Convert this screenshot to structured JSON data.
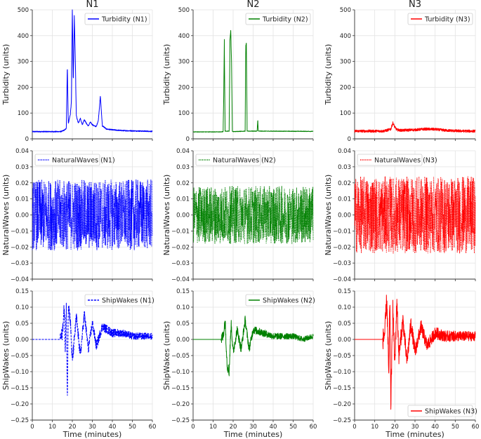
{
  "column_titles": [
    "N1",
    "N2",
    "N3"
  ],
  "chart_data": [
    {
      "type": "line",
      "panel": "N1-turbidity",
      "title": "N1",
      "xlabel": "",
      "ylabel": "Turbidity (units)",
      "ylim": [
        0,
        500
      ],
      "yticks": [
        0,
        100,
        200,
        300,
        400,
        500
      ],
      "yticklabels": [
        "0",
        "100",
        "200",
        "300",
        "400",
        "500"
      ],
      "xlim": [
        0,
        60
      ],
      "xticks": [
        0,
        10,
        20,
        30,
        40,
        50,
        60
      ],
      "grid": true,
      "legend": "top-right",
      "series": [
        {
          "name": "Turbidity (N1)",
          "color": "#0000ff",
          "style": "solid",
          "baseline": 28,
          "noise": 2,
          "x": [
            0,
            14,
            15,
            16,
            17,
            17.5,
            18,
            19,
            19.5,
            20,
            20.5,
            21,
            21.5,
            22,
            23,
            24,
            25,
            26,
            27,
            28,
            29,
            30,
            31,
            32,
            33,
            34,
            35,
            36,
            37,
            40,
            45,
            50,
            55,
            60
          ],
          "y": [
            28,
            28,
            30,
            34,
            40,
            285,
            60,
            95,
            140,
            500,
            220,
            480,
            300,
            90,
            60,
            80,
            55,
            75,
            60,
            50,
            65,
            55,
            50,
            48,
            72,
            165,
            50,
            45,
            38,
            35,
            32,
            31,
            30,
            29
          ]
        }
      ]
    },
    {
      "type": "line",
      "panel": "N2-turbidity",
      "title": "N2",
      "xlabel": "",
      "ylabel": "Turbidity (units)",
      "ylim": [
        0,
        500
      ],
      "yticks": [
        0,
        100,
        200,
        300,
        400,
        500
      ],
      "yticklabels": [
        "0",
        "100",
        "200",
        "300",
        "400",
        "500"
      ],
      "xlim": [
        0,
        60
      ],
      "xticks": [
        0,
        10,
        20,
        30,
        40,
        50,
        60
      ],
      "grid": true,
      "legend": "top-right",
      "series": [
        {
          "name": "Turbidity (N2)",
          "color": "#008000",
          "style": "solid",
          "baseline": 27,
          "noise": 1,
          "x": [
            0,
            14,
            15,
            15.3,
            15.6,
            16,
            18,
            18.4,
            18.8,
            19.2,
            19.6,
            20,
            26,
            26.3,
            26.6,
            27,
            32,
            32.3,
            32.6,
            60
          ],
          "y": [
            27,
            27,
            28,
            160,
            385,
            30,
            30,
            380,
            420,
            300,
            30,
            28,
            30,
            360,
            370,
            30,
            30,
            75,
            30,
            29
          ]
        }
      ]
    },
    {
      "type": "line",
      "panel": "N3-turbidity",
      "title": "N3",
      "xlabel": "",
      "ylabel": "Turbidity (units)",
      "ylim": [
        0,
        500
      ],
      "yticks": [
        0,
        100,
        200,
        300,
        400,
        500
      ],
      "yticklabels": [
        "0",
        "100",
        "200",
        "300",
        "400",
        "500"
      ],
      "xlim": [
        0,
        60
      ],
      "xticks": [
        0,
        10,
        20,
        30,
        40,
        50,
        60
      ],
      "grid": true,
      "legend": "top-right",
      "series": [
        {
          "name": "Turbidity (N3)",
          "color": "#ff0000",
          "style": "solid",
          "baseline": 30,
          "noise": 5,
          "x": [
            0,
            14,
            16,
            18,
            19,
            20,
            21,
            23,
            30,
            35,
            40,
            45,
            50,
            55,
            60
          ],
          "y": [
            30,
            30,
            33,
            38,
            62,
            45,
            35,
            33,
            35,
            38,
            37,
            33,
            31,
            30,
            30
          ]
        }
      ]
    },
    {
      "type": "line",
      "panel": "N1-naturalwaves",
      "xlabel": "",
      "ylabel": "NaturalWaves (units)",
      "ylim": [
        -0.04,
        0.04
      ],
      "yticks": [
        -0.04,
        -0.03,
        -0.02,
        -0.01,
        0,
        0.01,
        0.02,
        0.03,
        0.04
      ],
      "yticklabels": [
        "−0.04",
        "−0.03",
        "−0.02",
        "−0.01",
        "0.00",
        "0.01",
        "0.02",
        "0.03",
        "0.04"
      ],
      "xlim": [
        0,
        60
      ],
      "xticks": [
        0,
        10,
        20,
        30,
        40,
        50,
        60
      ],
      "grid": true,
      "legend": "top-left",
      "series": [
        {
          "name": "NaturalWaves (N1)",
          "color": "#0000ff",
          "style": "dotted",
          "x": [
            0,
            60
          ],
          "y": [
            0,
            0
          ],
          "noise": 0.022
        }
      ]
    },
    {
      "type": "line",
      "panel": "N2-naturalwaves",
      "xlabel": "",
      "ylabel": "NaturalWaves (units)",
      "ylim": [
        -0.04,
        0.04
      ],
      "yticks": [
        -0.04,
        -0.03,
        -0.02,
        -0.01,
        0,
        0.01,
        0.02,
        0.03,
        0.04
      ],
      "yticklabels": [
        "−0.04",
        "−0.03",
        "−0.02",
        "−0.01",
        "0.00",
        "0.01",
        "0.02",
        "0.03",
        "0.04"
      ],
      "xlim": [
        0,
        60
      ],
      "xticks": [
        0,
        10,
        20,
        30,
        40,
        50,
        60
      ],
      "grid": true,
      "legend": "top-left",
      "series": [
        {
          "name": "NaturalWaves (N2)",
          "color": "#008000",
          "style": "dotted",
          "x": [
            0,
            60
          ],
          "y": [
            0,
            0
          ],
          "noise": 0.018
        }
      ]
    },
    {
      "type": "line",
      "panel": "N3-naturalwaves",
      "xlabel": "",
      "ylabel": "NaturalWaves (units)",
      "ylim": [
        -0.04,
        0.04
      ],
      "yticks": [
        -0.04,
        -0.03,
        -0.02,
        -0.01,
        0,
        0.01,
        0.02,
        0.03,
        0.04
      ],
      "yticklabels": [
        "−0.04",
        "−0.03",
        "−0.02",
        "−0.01",
        "0.00",
        "0.01",
        "0.02",
        "0.03",
        "0.04"
      ],
      "xlim": [
        0,
        60
      ],
      "xticks": [
        0,
        10,
        20,
        30,
        40,
        50,
        60
      ],
      "grid": true,
      "legend": "top-left",
      "series": [
        {
          "name": "NaturalWaves (N3)",
          "color": "#ff0000",
          "style": "dotted",
          "x": [
            0,
            60
          ],
          "y": [
            0,
            0
          ],
          "noise": 0.024
        }
      ]
    },
    {
      "type": "line",
      "panel": "N1-shipwakes",
      "xlabel": "Time (minutes)",
      "ylabel": "ShipWakes (units)",
      "ylim": [
        -0.25,
        0.15
      ],
      "yticks": [
        -0.25,
        -0.2,
        -0.15,
        -0.1,
        -0.05,
        0,
        0.05,
        0.1,
        0.15
      ],
      "yticklabels": [
        "−0.25",
        "−0.20",
        "−0.15",
        "−0.10",
        "−0.05",
        "0.00",
        "0.05",
        "0.10",
        "0.15"
      ],
      "xlim": [
        0,
        60
      ],
      "xticks": [
        0,
        10,
        20,
        30,
        40,
        50,
        60
      ],
      "xticklabels": [
        "0",
        "10",
        "20",
        "30",
        "40",
        "50",
        "60"
      ],
      "grid": true,
      "legend": "top-right",
      "series": [
        {
          "name": "ShipWakes (N1)",
          "color": "#0000ff",
          "style": "dashed",
          "x": [
            0,
            14,
            15,
            16,
            16.5,
            17,
            17.5,
            18,
            19,
            20,
            22,
            24,
            26,
            28,
            30,
            32,
            35,
            40,
            45,
            50,
            55,
            60
          ],
          "y": [
            0,
            0,
            0.02,
            0.1,
            -0.05,
            0.12,
            -0.2,
            0.11,
            0.06,
            -0.07,
            0.07,
            -0.05,
            0.08,
            -0.03,
            0.05,
            -0.02,
            0.04,
            0.02,
            0.02,
            0.01,
            0.01,
            0.01
          ],
          "noise": 0.015,
          "noise_start": 14
        }
      ]
    },
    {
      "type": "line",
      "panel": "N2-shipwakes",
      "xlabel": "Time (minutes)",
      "ylabel": "ShipWakes (units)",
      "ylim": [
        -0.25,
        0.15
      ],
      "yticks": [
        -0.25,
        -0.2,
        -0.15,
        -0.1,
        -0.05,
        0,
        0.05,
        0.1,
        0.15
      ],
      "yticklabels": [
        "−0.25",
        "−0.20",
        "−0.15",
        "−0.10",
        "−0.05",
        "0.00",
        "0.05",
        "0.10",
        "0.15"
      ],
      "xlim": [
        0,
        60
      ],
      "xticks": [
        0,
        10,
        20,
        30,
        40,
        50,
        60
      ],
      "xticklabels": [
        "0",
        "10",
        "20",
        "30",
        "40",
        "50",
        "60"
      ],
      "grid": true,
      "legend": "top-right",
      "series": [
        {
          "name": "ShipWakes (N2)",
          "color": "#008000",
          "style": "solid",
          "x": [
            0,
            14,
            15,
            16,
            17,
            18,
            19,
            20,
            22,
            24,
            26,
            28,
            30,
            35,
            40,
            45,
            50,
            55,
            60
          ],
          "y": [
            0,
            0,
            0.01,
            0.06,
            -0.08,
            -0.1,
            0.05,
            -0.04,
            0.03,
            -0.03,
            0.06,
            -0.03,
            0.03,
            0.02,
            0.01,
            0.01,
            0.01,
            0.0,
            0.01
          ],
          "noise": 0.012,
          "noise_start": 14
        }
      ]
    },
    {
      "type": "line",
      "panel": "N3-shipwakes",
      "xlabel": "Time (minutes)",
      "ylabel": "ShipWakes (units)",
      "ylim": [
        -0.25,
        0.15
      ],
      "yticks": [
        -0.25,
        -0.2,
        -0.15,
        -0.1,
        -0.05,
        0,
        0.05,
        0.1,
        0.15
      ],
      "yticklabels": [
        "−0.25",
        "−0.20",
        "−0.15",
        "−0.10",
        "−0.05",
        "0.00",
        "0.05",
        "0.10",
        "0.15"
      ],
      "xlim": [
        0,
        60
      ],
      "xticks": [
        0,
        10,
        20,
        30,
        40,
        50,
        60
      ],
      "xticklabels": [
        "0",
        "10",
        "20",
        "30",
        "40",
        "50",
        "60"
      ],
      "grid": true,
      "legend": "bottom-right",
      "series": [
        {
          "name": "ShipWakes (N3)",
          "color": "#ff0000",
          "style": "solid",
          "x": [
            0,
            14,
            15,
            16,
            17,
            17.5,
            18,
            19,
            20,
            21,
            22,
            24,
            26,
            28,
            30,
            33,
            36,
            40,
            45,
            50,
            55,
            60
          ],
          "y": [
            0,
            0,
            0.02,
            0.13,
            -0.12,
            0.14,
            -0.2,
            0.1,
            -0.08,
            0.12,
            -0.05,
            0.06,
            -0.07,
            0.05,
            -0.04,
            0.04,
            -0.02,
            0.02,
            0.01,
            0.01,
            0.01,
            0.01
          ],
          "noise": 0.022,
          "noise_start": 14
        }
      ]
    }
  ]
}
